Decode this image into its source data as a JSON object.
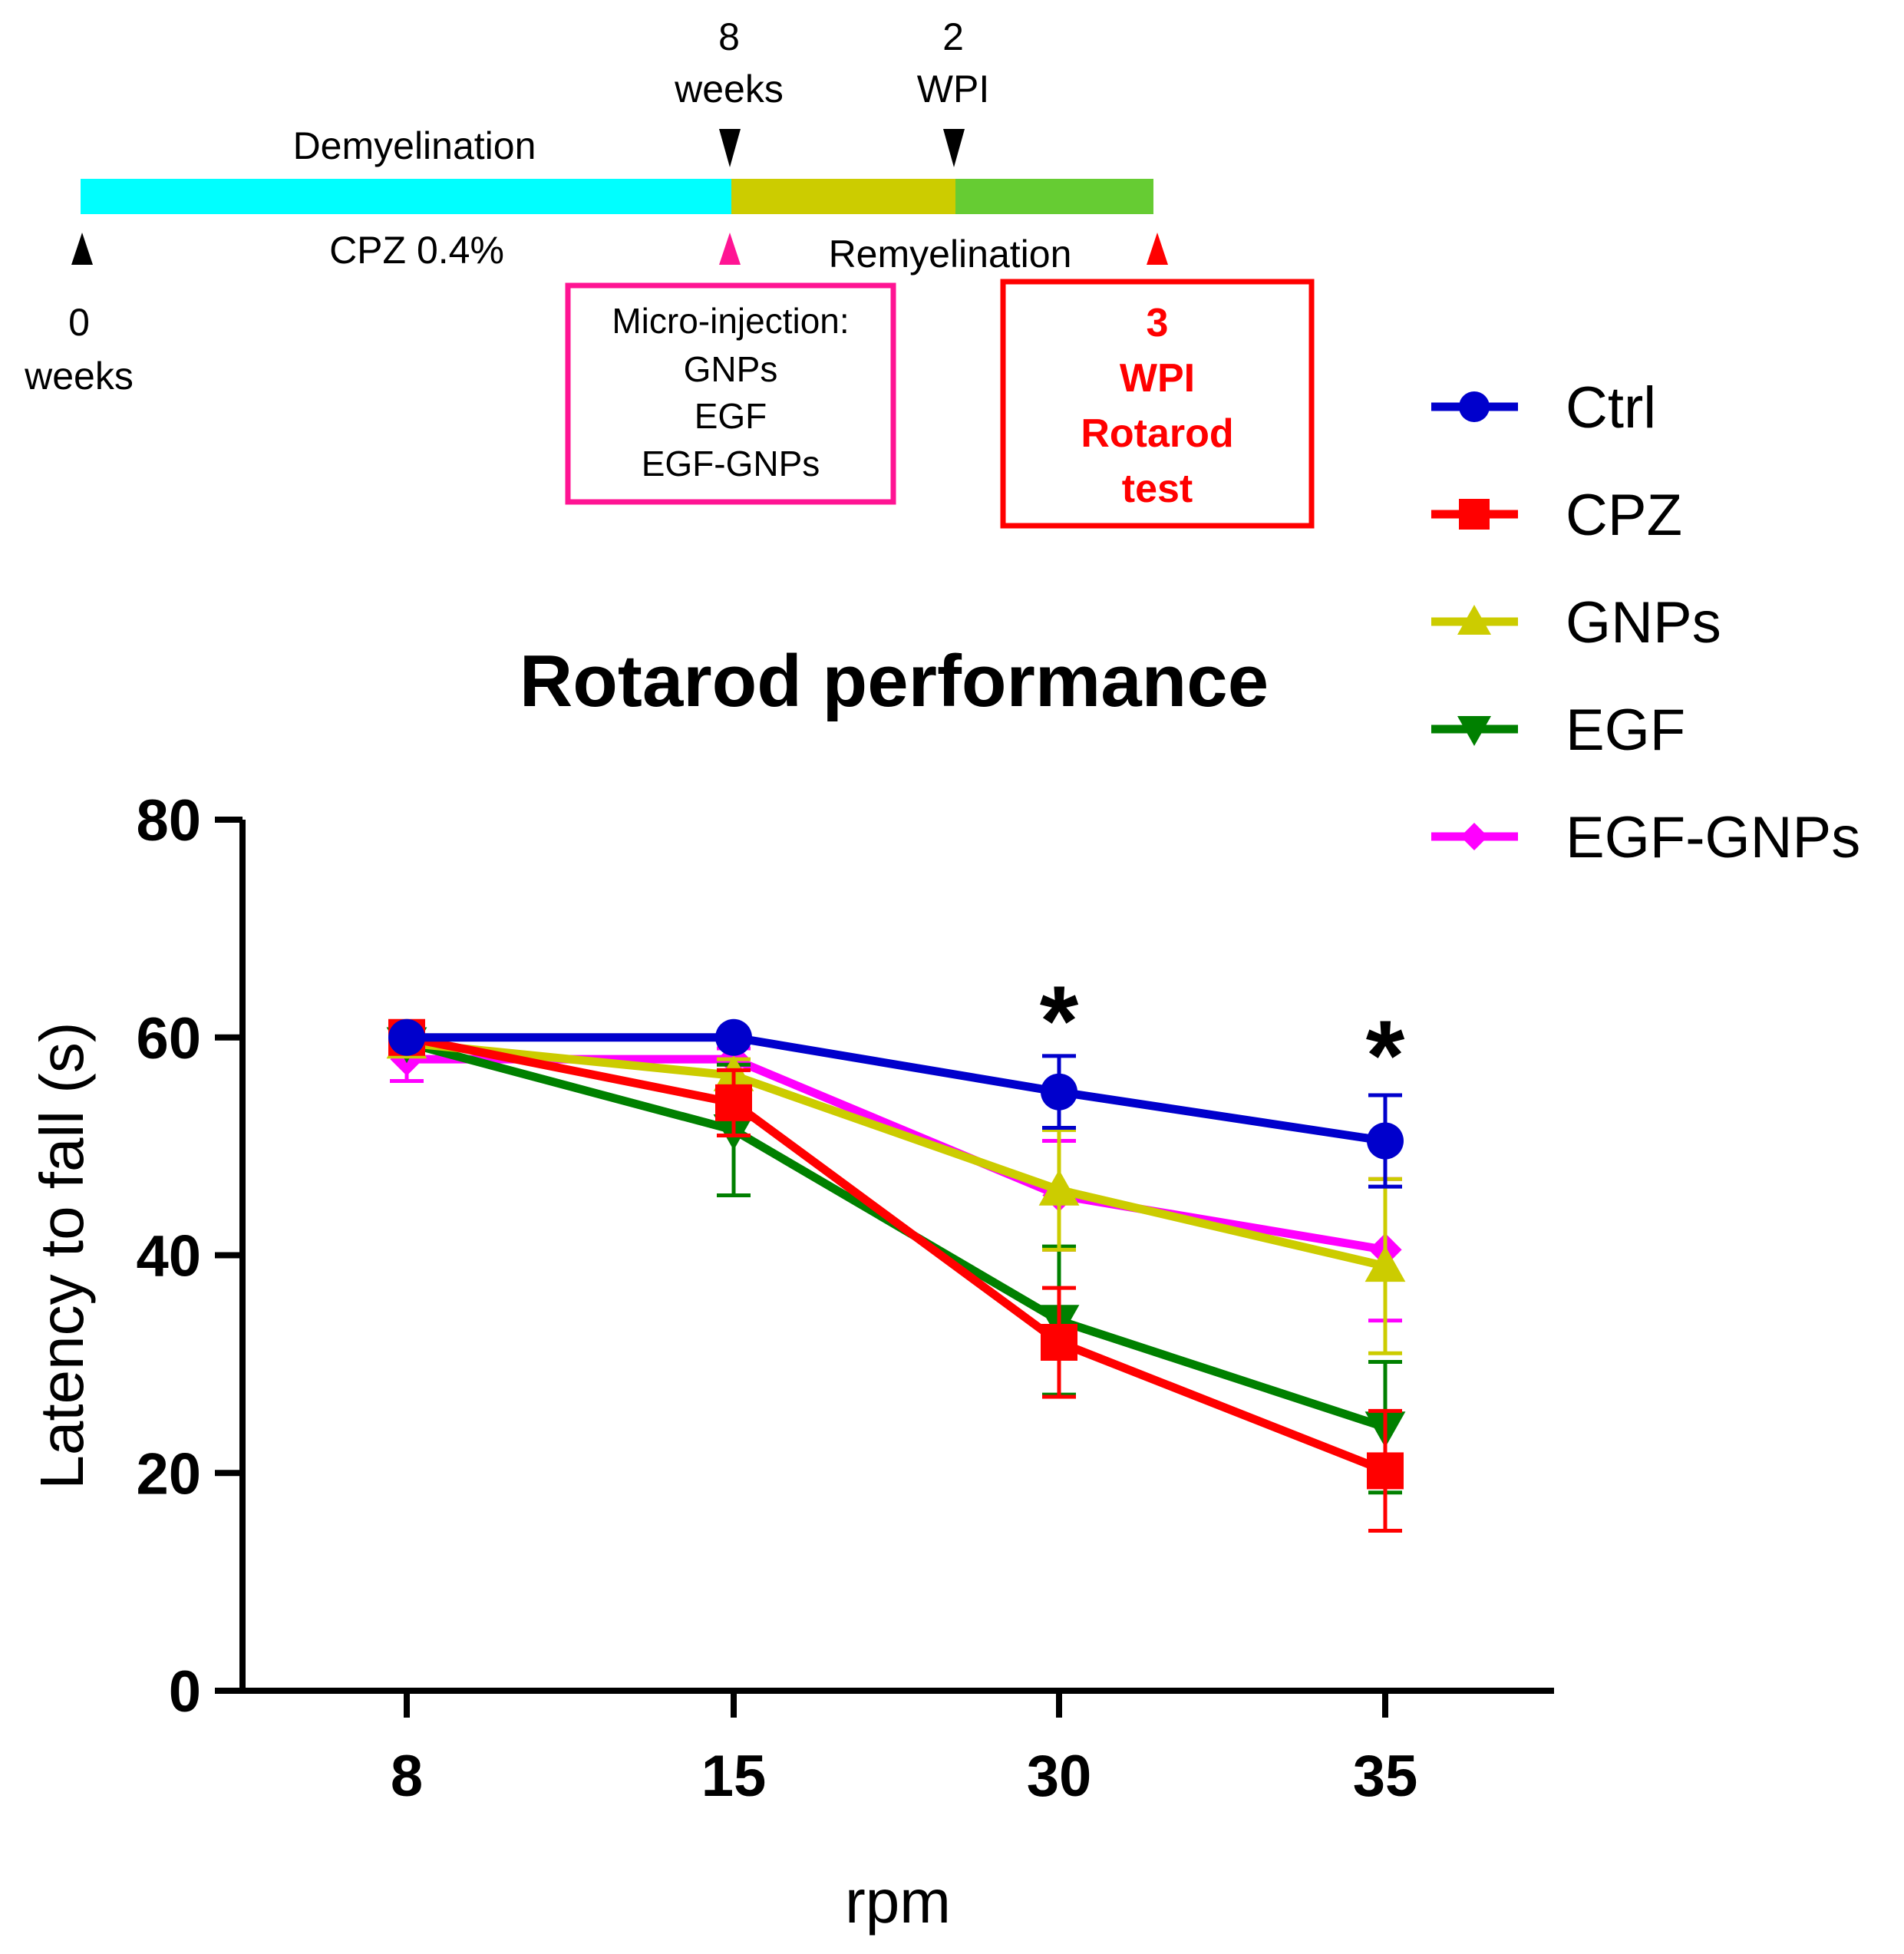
{
  "timeline": {
    "label_0": "0",
    "label_0_unit": "weeks",
    "label_8": "8",
    "label_8_unit": "weeks",
    "label_2": "2",
    "label_2_unit": "WPI",
    "demyelination": "Demyelination",
    "cpz": "CPZ 0.4%",
    "remyelination": "Remyelination",
    "colors": {
      "demyelination": "#00ffff",
      "post": "#cccc00",
      "remyelination": "#66cc33"
    },
    "injection_box": {
      "lines": [
        "Micro-injection:",
        "GNPs",
        "EGF",
        "EGF-GNPs"
      ],
      "color": "#ff1493"
    },
    "test_box": {
      "lines": [
        "3",
        "WPI",
        "Rotarod",
        "test"
      ],
      "color": "#ff0000"
    }
  },
  "chart_data": {
    "type": "line",
    "title": "Rotarod performance",
    "xlabel": "rpm",
    "ylabel": "Latency to fall (s)",
    "categories": [
      "8",
      "15",
      "30",
      "35"
    ],
    "ylim": [
      0,
      80
    ],
    "yticks": [
      "0",
      "20",
      "40",
      "60",
      "80"
    ],
    "series": [
      {
        "name": "Ctrl",
        "color": "#0000cc",
        "marker": "circle",
        "values": [
          60,
          60,
          55,
          50.5
        ],
        "errors": [
          0.5,
          0.5,
          3.3,
          4.2
        ]
      },
      {
        "name": "CPZ",
        "color": "#ff0000",
        "marker": "square",
        "values": [
          60,
          54,
          32,
          20.2
        ],
        "errors": [
          1,
          3,
          5,
          5.5
        ]
      },
      {
        "name": "GNPs",
        "color": "#cccc00",
        "marker": "triangle-up",
        "values": [
          59.5,
          56.5,
          46,
          39
        ],
        "errors": [
          1,
          1.5,
          5.5,
          8
        ]
      },
      {
        "name": "EGF",
        "color": "#008000",
        "marker": "triangle-down",
        "values": [
          59.5,
          51.5,
          34,
          24.2
        ],
        "errors": [
          0.5,
          6,
          6.8,
          6
        ]
      },
      {
        "name": "EGF-GNPs",
        "color": "#ff00ff",
        "marker": "diamond",
        "values": [
          58,
          58,
          45.5,
          40.5
        ],
        "errors": [
          2,
          1,
          5,
          6.5
        ]
      }
    ],
    "annotations": [
      {
        "text": "*",
        "category": "30"
      },
      {
        "text": "*",
        "category": "35"
      }
    ]
  }
}
